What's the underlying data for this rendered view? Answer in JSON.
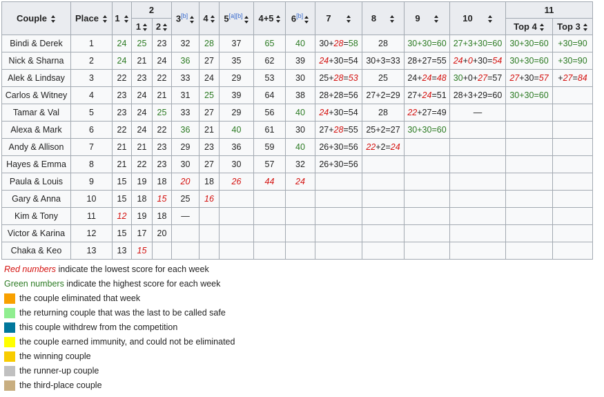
{
  "headers": {
    "couple": "Couple",
    "place": "Place",
    "w1": "1",
    "w2": "2",
    "w2a": "1",
    "w2b": "2",
    "w3": "3",
    "w3_note": "[b]",
    "w4": "4",
    "w5": "5",
    "w5_note": "[a][b]",
    "w45": "4+5",
    "w6": "6",
    "w6_note": "[b]",
    "w7": "7",
    "w8": "8",
    "w9": "9",
    "w10": "10",
    "w11": "11",
    "top4": "Top 4",
    "top3": "Top 3"
  },
  "rows": [
    {
      "couple": "Bindi & Derek",
      "place": "1",
      "cells": [
        {
          "v": "24",
          "c": "g"
        },
        {
          "v": "25",
          "c": "g"
        },
        {
          "v": "23"
        },
        {
          "v": "32"
        },
        {
          "v": "28",
          "c": "g"
        },
        {
          "v": "37"
        },
        {
          "v": "65",
          "c": "g"
        },
        {
          "v": "40",
          "c": "g"
        },
        {
          "p": [
            [
              "30",
              ""
            ],
            [
              "+",
              ""
            ],
            [
              "28",
              "r"
            ],
            [
              "=",
              ""
            ],
            [
              "58",
              "g"
            ]
          ]
        },
        {
          "v": "28"
        },
        {
          "p": [
            [
              "30+30=60",
              "g"
            ]
          ]
        },
        {
          "bg": "safe",
          "p": [
            [
              "27+3+30=60",
              "g"
            ]
          ]
        },
        {
          "p": [
            [
              "30+30=60",
              "g"
            ]
          ]
        },
        {
          "bg": "win",
          "p": [
            [
              "+30=90",
              "g"
            ]
          ]
        }
      ]
    },
    {
      "couple": "Nick & Sharna",
      "place": "2",
      "cells": [
        {
          "v": "24",
          "c": "g"
        },
        {
          "v": "21"
        },
        {
          "v": "24"
        },
        {
          "v": "36",
          "c": "g"
        },
        {
          "v": "27"
        },
        {
          "v": "35"
        },
        {
          "v": "62"
        },
        {
          "v": "39"
        },
        {
          "p": [
            [
              "24",
              "r"
            ],
            [
              "+30=54",
              ""
            ]
          ]
        },
        {
          "bg": "imm",
          "p": [
            [
              "30+3=33",
              ""
            ]
          ]
        },
        {
          "p": [
            [
              "28+27=55",
              ""
            ]
          ]
        },
        {
          "bg": "safe",
          "p": [
            [
              "24",
              "r"
            ],
            [
              "+",
              ""
            ],
            [
              "0",
              "r"
            ],
            [
              "+30=",
              ""
            ],
            [
              "54",
              "r"
            ]
          ]
        },
        {
          "bg": "safe",
          "p": [
            [
              "30+30=60",
              "g"
            ]
          ]
        },
        {
          "bg": "run",
          "p": [
            [
              "+30=90",
              "g"
            ]
          ]
        }
      ]
    },
    {
      "couple": "Alek & Lindsay",
      "place": "3",
      "cells": [
        {
          "v": "22"
        },
        {
          "v": "23"
        },
        {
          "v": "22"
        },
        {
          "v": "33"
        },
        {
          "v": "24"
        },
        {
          "v": "29"
        },
        {
          "v": "53"
        },
        {
          "v": "30"
        },
        {
          "p": [
            [
              "25+",
              ""
            ],
            [
              "28",
              "r"
            ],
            [
              "=",
              ""
            ],
            [
              "53",
              "r"
            ]
          ]
        },
        {
          "v": "25"
        },
        {
          "p": [
            [
              "24+",
              ""
            ],
            [
              "24",
              "r"
            ],
            [
              "=",
              ""
            ],
            [
              "48",
              "r"
            ]
          ]
        },
        {
          "p": [
            [
              "30",
              "g"
            ],
            [
              "+0+",
              ""
            ],
            [
              "27",
              "r"
            ],
            [
              "=57",
              ""
            ]
          ]
        },
        {
          "p": [
            [
              "27",
              "r"
            ],
            [
              "+30=",
              ""
            ],
            [
              "57",
              "r"
            ]
          ]
        },
        {
          "bg": "third",
          "p": [
            [
              "+",
              ""
            ],
            [
              "27",
              "r"
            ],
            [
              "=",
              ""
            ],
            [
              "84",
              "r"
            ]
          ]
        }
      ]
    },
    {
      "couple": "Carlos & Witney",
      "place": "4",
      "cells": [
        {
          "v": "23"
        },
        {
          "v": "24"
        },
        {
          "v": "21"
        },
        {
          "v": "31"
        },
        {
          "v": "25",
          "c": "g",
          "bg": "safe"
        },
        {
          "v": "39"
        },
        {
          "v": "64"
        },
        {
          "v": "38"
        },
        {
          "p": [
            [
              "28+28=56",
              ""
            ]
          ]
        },
        {
          "bg": "safe",
          "p": [
            [
              "27+2=29",
              ""
            ]
          ]
        },
        {
          "bg": "safe",
          "p": [
            [
              "27+",
              ""
            ],
            [
              "24",
              "r"
            ],
            [
              "=51",
              ""
            ]
          ]
        },
        {
          "p": [
            [
              "28+3+29=60",
              ""
            ]
          ]
        },
        {
          "bg": "elim",
          "p": [
            [
              "30+30=60",
              "g"
            ]
          ]
        },
        {
          "bg": "none"
        }
      ]
    },
    {
      "couple": "Tamar & Val",
      "place": "5",
      "cells": [
        {
          "v": "23"
        },
        {
          "v": "24"
        },
        {
          "v": "25",
          "c": "g"
        },
        {
          "v": "33"
        },
        {
          "v": "27"
        },
        {
          "v": "29"
        },
        {
          "v": "56"
        },
        {
          "v": "40",
          "c": "g"
        },
        {
          "p": [
            [
              "24",
              "r"
            ],
            [
              "+30=54",
              ""
            ]
          ]
        },
        {
          "v": "28"
        },
        {
          "p": [
            [
              "22",
              "r"
            ],
            [
              "+27=49",
              ""
            ]
          ]
        },
        {
          "bg": "wd",
          "p": [
            [
              "—",
              ""
            ]
          ]
        },
        {
          "bg": "none"
        },
        {
          "bg": "none"
        }
      ]
    },
    {
      "couple": "Alexa & Mark",
      "place": "6",
      "cells": [
        {
          "v": "22"
        },
        {
          "v": "24"
        },
        {
          "v": "22"
        },
        {
          "v": "36",
          "c": "g"
        },
        {
          "v": "21"
        },
        {
          "v": "40",
          "c": "g"
        },
        {
          "v": "61"
        },
        {
          "v": "30",
          "bg": "safe"
        },
        {
          "bg": "safe",
          "p": [
            [
              "27+",
              ""
            ],
            [
              "28",
              "r"
            ],
            [
              "=55",
              ""
            ]
          ]
        },
        {
          "p": [
            [
              "25+2=27",
              ""
            ]
          ]
        },
        {
          "bg": "elim",
          "p": [
            [
              "30+30=60",
              "g"
            ]
          ]
        },
        {
          "bg": "none"
        },
        {
          "bg": "none"
        },
        {
          "bg": "none"
        }
      ]
    },
    {
      "couple": "Andy & Allison",
      "place": "7",
      "cells": [
        {
          "v": "21"
        },
        {
          "v": "21"
        },
        {
          "v": "23"
        },
        {
          "v": "29",
          "bg": "safe"
        },
        {
          "v": "23"
        },
        {
          "v": "36"
        },
        {
          "v": "59"
        },
        {
          "v": "40",
          "c": "g"
        },
        {
          "p": [
            [
              "26+30=56",
              ""
            ]
          ]
        },
        {
          "bg": "elim",
          "p": [
            [
              "22",
              "r"
            ],
            [
              "+2=",
              ""
            ],
            [
              "24",
              "r"
            ]
          ]
        },
        {
          "bg": "none"
        },
        {
          "bg": "none"
        },
        {
          "bg": "none"
        },
        {
          "bg": "none"
        }
      ]
    },
    {
      "couple": "Hayes & Emma",
      "place": "8",
      "cells": [
        {
          "v": "21"
        },
        {
          "v": "22"
        },
        {
          "v": "23"
        },
        {
          "v": "30"
        },
        {
          "v": "27"
        },
        {
          "v": "30"
        },
        {
          "v": "57"
        },
        {
          "v": "32"
        },
        {
          "bg": "elim",
          "p": [
            [
              "26+30=56",
              ""
            ]
          ]
        },
        {
          "bg": "none"
        },
        {
          "bg": "none"
        },
        {
          "bg": "none"
        },
        {
          "bg": "none"
        },
        {
          "bg": "none"
        }
      ]
    },
    {
      "couple": "Paula & Louis",
      "place": "9",
      "cells": [
        {
          "v": "15"
        },
        {
          "v": "19"
        },
        {
          "v": "18"
        },
        {
          "v": "20",
          "c": "r",
          "bg": "safe"
        },
        {
          "v": "18"
        },
        {
          "v": "26",
          "c": "r"
        },
        {
          "v": "44",
          "c": "r"
        },
        {
          "v": "24",
          "c": "r",
          "bg": "elim"
        },
        {
          "bg": "none"
        },
        {
          "bg": "none"
        },
        {
          "bg": "none"
        },
        {
          "bg": "none"
        },
        {
          "bg": "none"
        },
        {
          "bg": "none"
        }
      ]
    },
    {
      "couple": "Gary & Anna",
      "place": "10",
      "cells": [
        {
          "v": "15"
        },
        {
          "v": "18",
          "bg": "safe"
        },
        {
          "v": "15",
          "c": "r"
        },
        {
          "v": "25"
        },
        {
          "v": "16",
          "c": "r",
          "bg": "elim"
        },
        {
          "bg": "none"
        },
        {
          "bg": "none"
        },
        {
          "bg": "none"
        },
        {
          "bg": "none"
        },
        {
          "bg": "none"
        },
        {
          "bg": "none"
        },
        {
          "bg": "none"
        },
        {
          "bg": "none"
        },
        {
          "bg": "none"
        }
      ]
    },
    {
      "couple": "Kim & Tony",
      "place": "11",
      "cells": [
        {
          "v": "12",
          "c": "r"
        },
        {
          "v": "19"
        },
        {
          "v": "18"
        },
        {
          "v": "—",
          "bg": "wd"
        },
        {
          "bg": "none"
        },
        {
          "bg": "none"
        },
        {
          "bg": "none"
        },
        {
          "bg": "none"
        },
        {
          "bg": "none"
        },
        {
          "bg": "none"
        },
        {
          "bg": "none"
        },
        {
          "bg": "none"
        },
        {
          "bg": "none"
        },
        {
          "bg": "none"
        }
      ]
    },
    {
      "couple": "Victor & Karina",
      "place": "12",
      "cells": [
        {
          "v": "15"
        },
        {
          "v": "17"
        },
        {
          "v": "20",
          "bg": "elim"
        },
        {
          "bg": "none"
        },
        {
          "bg": "none"
        },
        {
          "bg": "none"
        },
        {
          "bg": "none"
        },
        {
          "bg": "none"
        },
        {
          "bg": "none"
        },
        {
          "bg": "none"
        },
        {
          "bg": "none"
        },
        {
          "bg": "none"
        },
        {
          "bg": "none"
        },
        {
          "bg": "none"
        }
      ]
    },
    {
      "couple": "Chaka & Keo",
      "place": "13",
      "cells": [
        {
          "v": "13"
        },
        {
          "v": "15",
          "c": "r",
          "bg": "elim"
        },
        {
          "bg": "none"
        },
        {
          "bg": "none"
        },
        {
          "bg": "none"
        },
        {
          "bg": "none"
        },
        {
          "bg": "none"
        },
        {
          "bg": "none"
        },
        {
          "bg": "none"
        },
        {
          "bg": "none"
        },
        {
          "bg": "none"
        },
        {
          "bg": "none"
        },
        {
          "bg": "none"
        },
        {
          "bg": "none"
        }
      ]
    }
  ],
  "legend": {
    "red_lead": "Red numbers",
    "red_text": " indicate the lowest score for each week",
    "green_lead": "Green numbers",
    "green_text": " indicate the highest score for each week",
    "items": [
      {
        "color": "#f8a000",
        "text": "the couple eliminated that week"
      },
      {
        "color": "#90ee90",
        "text": "the returning couple that was the last to be called safe"
      },
      {
        "color": "#00779c",
        "text": "this couple withdrew from the competition"
      },
      {
        "color": "#ffff00",
        "text": "the couple earned immunity, and could not be eliminated"
      },
      {
        "color": "#f8cc00",
        "text": "the winning couple"
      },
      {
        "color": "#c0c0c0",
        "text": "the runner-up couple"
      },
      {
        "color": "#c8ae80",
        "text": "the third-place couple"
      }
    ]
  },
  "colors": {
    "red": "#d4120f",
    "green": "#2b7a22",
    "header": "#eaecf0",
    "empty": "#a9a9a9"
  }
}
